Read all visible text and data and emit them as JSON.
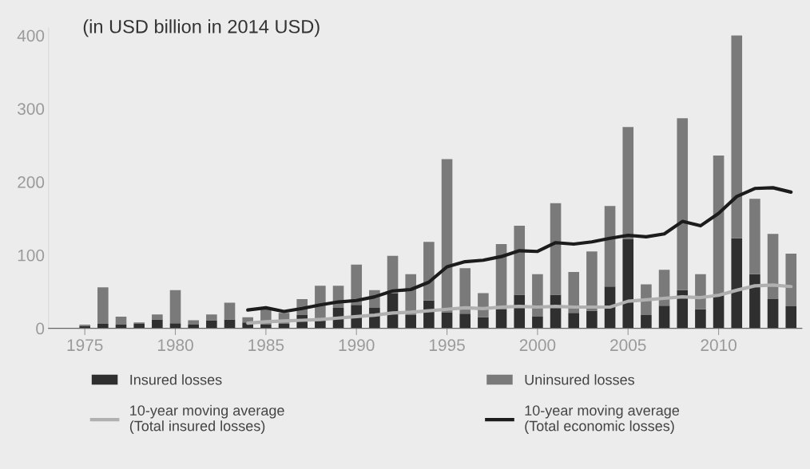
{
  "chart_data": {
    "type": "bar",
    "title": "(in USD billion in 2014 USD)",
    "x": [
      1975,
      1976,
      1977,
      1978,
      1979,
      1980,
      1981,
      1982,
      1983,
      1984,
      1985,
      1986,
      1987,
      1988,
      1989,
      1990,
      1991,
      1992,
      1993,
      1994,
      1995,
      1996,
      1997,
      1998,
      1999,
      2000,
      2001,
      2002,
      2003,
      2004,
      2005,
      2006,
      2007,
      2008,
      2009,
      2010,
      2011,
      2012,
      2013,
      2014
    ],
    "stacked": true,
    "series": [
      {
        "name": "Insured losses",
        "color": "#2f2f2f",
        "values": [
          3,
          6,
          5,
          6,
          12,
          7,
          5,
          11,
          12,
          8,
          5,
          6,
          18,
          14,
          28,
          32,
          28,
          48,
          18,
          38,
          22,
          20,
          15,
          26,
          46,
          16,
          46,
          21,
          24,
          57,
          122,
          18,
          31,
          52,
          26,
          47,
          123,
          74,
          40,
          30
        ]
      },
      {
        "name": "Uninsured losses",
        "color": "#7a7a7a",
        "values": [
          2,
          50,
          11,
          2,
          7,
          45,
          6,
          8,
          23,
          7,
          23,
          15,
          22,
          44,
          30,
          55,
          24,
          51,
          56,
          80,
          209,
          62,
          33,
          89,
          94,
          58,
          125,
          56,
          81,
          110,
          153,
          42,
          49,
          235,
          48,
          189,
          277,
          103,
          89,
          72
        ]
      },
      {
        "name": "10-year moving average\n(Total insured losses)",
        "type": "line",
        "color": "#b0b0b0",
        "x": [
          1984,
          1985,
          1986,
          1987,
          1988,
          1989,
          1990,
          1991,
          1992,
          1993,
          1994,
          1995,
          1996,
          1997,
          1998,
          1999,
          2000,
          2001,
          2002,
          2003,
          2004,
          2005,
          2006,
          2007,
          2008,
          2009,
          2010,
          2011,
          2012,
          2013,
          2014
        ],
        "values": [
          7,
          9,
          10,
          11,
          12,
          14,
          16,
          18,
          21,
          22,
          24,
          26,
          28,
          27,
          29,
          30,
          29,
          30,
          29,
          29,
          29,
          37,
          39,
          41,
          43,
          42,
          45,
          52,
          58,
          59,
          57
        ]
      },
      {
        "name": "10-year moving average\n(Total economic losses)",
        "type": "line",
        "color": "#1c1c1c",
        "x": [
          1984,
          1985,
          1986,
          1987,
          1988,
          1989,
          1990,
          1991,
          1992,
          1993,
          1994,
          1995,
          1996,
          1997,
          1998,
          1999,
          2000,
          2001,
          2002,
          2003,
          2004,
          2005,
          2006,
          2007,
          2008,
          2009,
          2010,
          2011,
          2012,
          2013,
          2014
        ],
        "values": [
          25,
          28,
          23,
          27,
          32,
          36,
          38,
          43,
          51,
          53,
          63,
          84,
          91,
          93,
          98,
          106,
          105,
          117,
          115,
          118,
          123,
          127,
          125,
          129,
          146,
          140,
          157,
          180,
          191,
          192,
          186
        ]
      }
    ],
    "xlim": [
      1973,
      2014.6
    ],
    "xticks": [
      1975,
      1980,
      1985,
      1990,
      1995,
      2000,
      2005,
      2010
    ],
    "ylim": [
      0,
      410
    ],
    "yticks": [
      0,
      100,
      200,
      300,
      400
    ],
    "grid": false,
    "legend": "bottom",
    "marker": "none",
    "line_style": "solid"
  }
}
